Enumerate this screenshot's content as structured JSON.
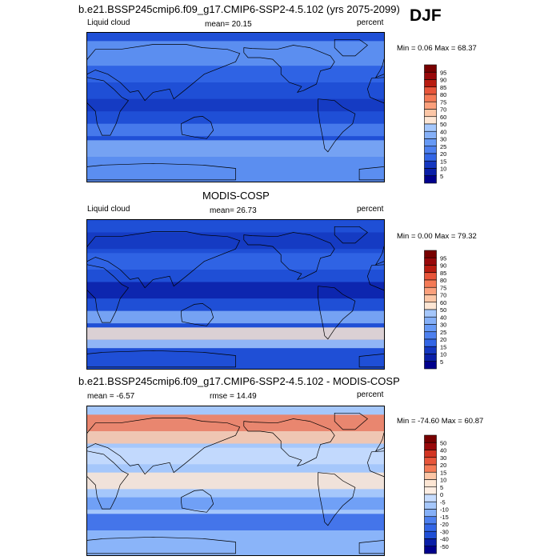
{
  "season": "DJF",
  "colors": {
    "seq_scale": [
      "#00008c",
      "#0a1fa8",
      "#1437c0",
      "#1f4fd6",
      "#3366e6",
      "#4d80ef",
      "#6699f5",
      "#85b0f8",
      "#a5c7fb",
      "#c7dcfd",
      "#fde6d4",
      "#fcc6a6",
      "#fba07c",
      "#f47a56",
      "#e8553a",
      "#d23422",
      "#b81b10",
      "#98080a",
      "#780000"
    ],
    "diff_scale": [
      "#00008c",
      "#0a1fa8",
      "#1437c0",
      "#1f4fd6",
      "#3366e6",
      "#4d80ef",
      "#6699f5",
      "#85b0f8",
      "#a5c7fb",
      "#c7dcfd",
      "#eef3fe",
      "#fdeee3",
      "#fde6d4",
      "#fcc6a6",
      "#fba07c",
      "#f47a56",
      "#e8553a",
      "#d23422",
      "#b81b10",
      "#98080a",
      "#780000"
    ]
  },
  "chart_data": [
    {
      "type": "heatmap",
      "title": "b.e21.BSSP245cmip6.f09_g17.CMIP6-SSP2-4.5.102 (yrs 2075-2099)",
      "left_label": "Liquid cloud",
      "center_label": "mean=  20.15",
      "right_label": "percent",
      "stats": "Min =   0.06 Max =  68.37",
      "min": 0.06,
      "max": 68.37,
      "mean": 20.15,
      "colorbar_levels": [
        "95",
        "90",
        "85",
        "80",
        "75",
        "70",
        "60",
        "50",
        "40",
        "30",
        "25",
        "20",
        "15",
        "10",
        "5"
      ]
    },
    {
      "type": "heatmap",
      "title": "MODIS-COSP",
      "left_label": "Liquid cloud",
      "center_label": "mean=  26.73",
      "right_label": "percent",
      "stats": "Min =   0.00 Max =  79.32",
      "min": 0.0,
      "max": 79.32,
      "mean": 26.73,
      "colorbar_levels": [
        "95",
        "90",
        "85",
        "80",
        "75",
        "70",
        "60",
        "50",
        "40",
        "30",
        "25",
        "20",
        "15",
        "10",
        "5"
      ]
    },
    {
      "type": "heatmap",
      "title": "b.e21.BSSP245cmip6.f09_g17.CMIP6-SSP2-4.5.102 - MODIS-COSP",
      "left_label": "mean =  -6.57",
      "center_label": "rmse =  14.49",
      "right_label": "percent",
      "stats": "Min = -74.60 Max =  60.87",
      "min": -74.6,
      "max": 60.87,
      "mean": -6.57,
      "rmse": 14.49,
      "colorbar_levels": [
        "50",
        "40",
        "30",
        "20",
        "15",
        "10",
        "5",
        "0",
        "-5",
        "-10",
        "-15",
        "-20",
        "-30",
        "-40",
        "-50"
      ]
    }
  ]
}
